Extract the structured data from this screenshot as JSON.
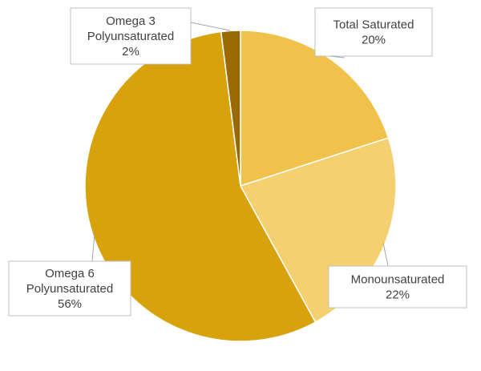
{
  "chart_data": {
    "type": "pie",
    "start_angle_deg": 0,
    "direction": "clockwise",
    "slices": [
      {
        "name": "Total Saturated",
        "value": 20,
        "label": "20%",
        "color": "#F0C24B"
      },
      {
        "name": "Monounsaturated",
        "value": 22,
        "label": "22%",
        "color": "#F5D071"
      },
      {
        "name": "Omega 6 Polyunsaturated",
        "value": 56,
        "label": "56%",
        "color": "#D8A20C"
      },
      {
        "name": "Omega 3 Polyunsaturated",
        "value": 2,
        "label": "2%",
        "color": "#9A6A05"
      }
    ],
    "data_labels": [
      {
        "lines": [
          "Total Saturated",
          "20%"
        ]
      },
      {
        "lines": [
          "Monounsaturated",
          "22%"
        ]
      },
      {
        "lines": [
          "Omega 6",
          "Polyunsaturated",
          "56%"
        ]
      },
      {
        "lines": [
          "Omega 3",
          "Polyunsaturated",
          "2%"
        ]
      }
    ],
    "legend": "none"
  }
}
